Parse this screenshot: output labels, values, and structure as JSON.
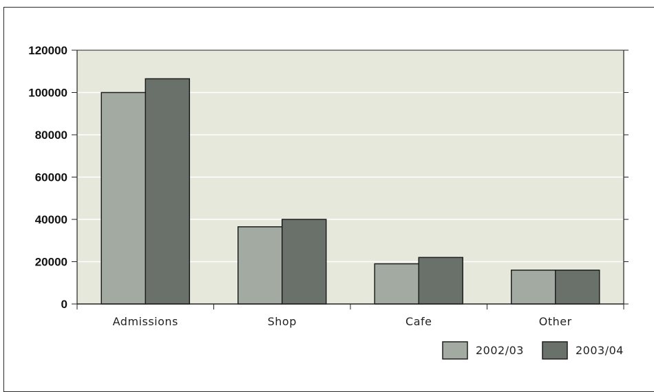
{
  "chart_data": {
    "type": "bar",
    "categories": [
      "Admissions",
      "Shop",
      "Cafe",
      "Other"
    ],
    "series": [
      {
        "name": "2002/03",
        "values": [
          100000,
          36500,
          19000,
          16000
        ],
        "color": "#a2aaa1"
      },
      {
        "name": "2003/04",
        "values": [
          106500,
          40000,
          22000,
          16000
        ],
        "color": "#6a716a"
      }
    ],
    "ylim": [
      0,
      120000
    ],
    "yticks": [
      "0",
      "20000",
      "40000",
      "60000",
      "80000",
      "100000",
      "120000"
    ],
    "grid": true,
    "legend_position": "bottom-right",
    "plot_background": "#e6e8dc",
    "gridline_color": "#ffffff"
  }
}
